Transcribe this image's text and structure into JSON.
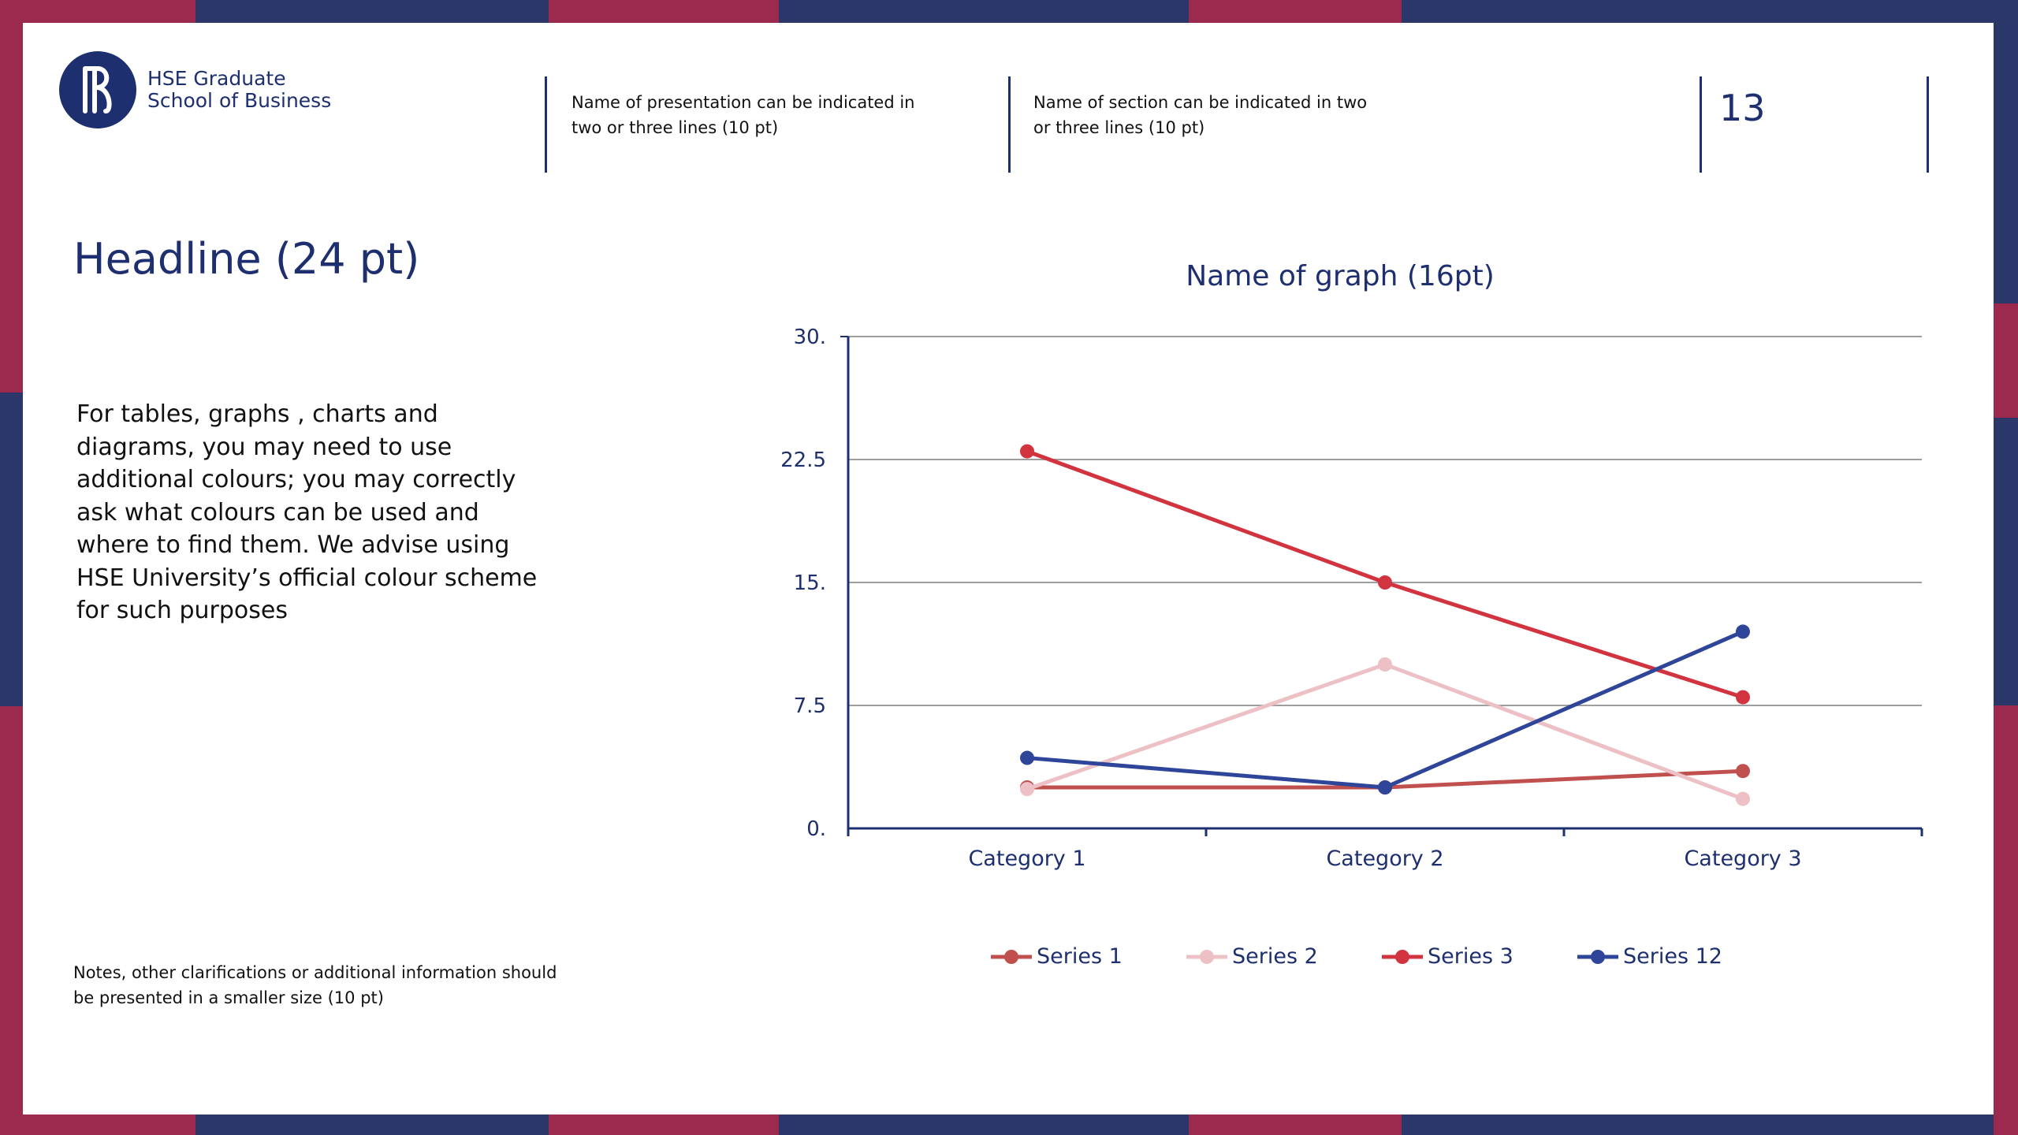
{
  "colors": {
    "navy": "#2b3769",
    "crimson": "#9c2a4e",
    "brand": "#1e2f6f",
    "axis": "#1e2f6f",
    "grid": "#9e9e9e"
  },
  "header": {
    "logo_icon": "hse-logo-icon",
    "logo_line1": "HSE Graduate",
    "logo_line2": "School of Business",
    "presentation_line1": "Name of presentation can be indicated in",
    "presentation_line2": "two or three lines (10 pt)",
    "section_line1": "Name of section can be indicated in two",
    "section_line2": "or three lines (10 pt)",
    "page_number": "13"
  },
  "headline": "Headline (24 pt)",
  "body_lines": [
    "For tables, graphs , charts and",
    "diagrams, you may need to use",
    "additional colours; you may correctly",
    "ask what colours can be used and",
    "where to find them. We advise using",
    "HSE University’s official colour scheme",
    "for such purposes"
  ],
  "notes_lines": [
    "Notes, other clarifications or additional information should",
    "be presented in a smaller size (10 pt)"
  ],
  "chart_data": {
    "type": "line",
    "title": "Name of graph (16pt)",
    "xlabel": "",
    "ylabel": "",
    "categories": [
      "Category 1",
      "Category 2",
      "Category 3"
    ],
    "y_ticks": [
      0,
      7.5,
      15,
      22.5,
      30
    ],
    "y_tick_labels": [
      "0.",
      "7.5",
      "15.",
      "22.5",
      "30."
    ],
    "ylim": [
      0,
      30
    ],
    "grid": true,
    "legend_position": "bottom",
    "series": [
      {
        "name": "Series 1",
        "color": "#c0504d",
        "values": [
          2.5,
          2.5,
          3.5
        ]
      },
      {
        "name": "Series 2",
        "color": "#ecc0c4",
        "values": [
          2.4,
          10,
          1.8
        ]
      },
      {
        "name": "Series 3",
        "color": "#d2343f",
        "values": [
          23,
          15,
          8
        ]
      },
      {
        "name": "Series 12",
        "color": "#2f4599",
        "values": [
          4.3,
          2.5,
          12
        ]
      }
    ]
  }
}
